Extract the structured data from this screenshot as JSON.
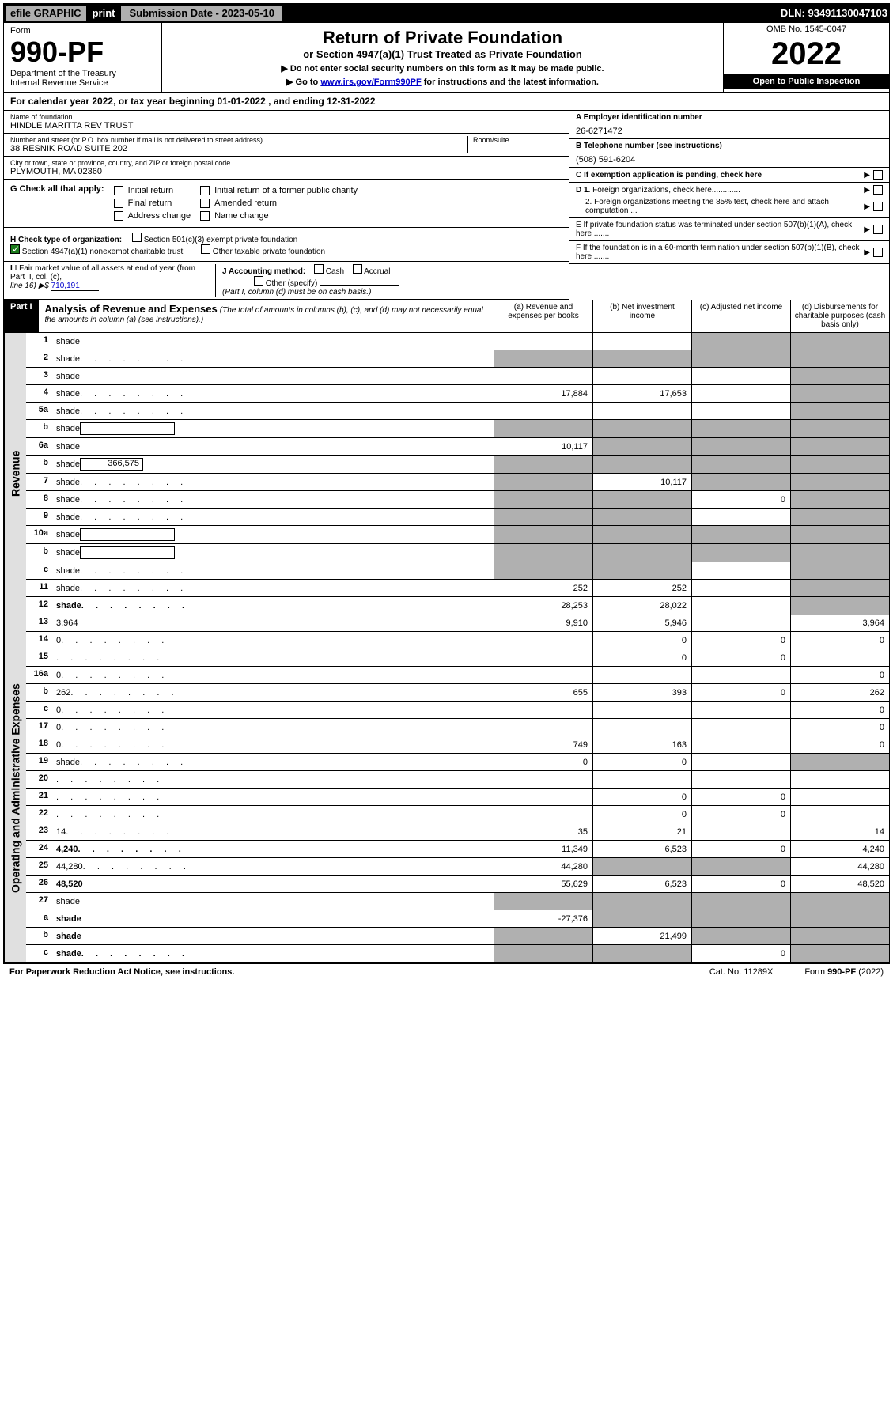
{
  "top": {
    "efile": "efile GRAPHIC",
    "print": "print",
    "subdate_label": "Submission Date - 2023-05-10",
    "dln": "DLN: 93491130047103"
  },
  "header": {
    "form_label": "Form",
    "form_num": "990-PF",
    "dept": "Department of the Treasury",
    "irs": "Internal Revenue Service",
    "title": "Return of Private Foundation",
    "subtitle": "or Section 4947(a)(1) Trust Treated as Private Foundation",
    "instr1": "▶ Do not enter social security numbers on this form as it may be made public.",
    "instr2_pre": "▶ Go to ",
    "instr2_link": "www.irs.gov/Form990PF",
    "instr2_post": " for instructions and the latest information.",
    "omb": "OMB No. 1545-0047",
    "year": "2022",
    "open": "Open to Public Inspection"
  },
  "calyear": "For calendar year 2022, or tax year beginning 01-01-2022                    , and ending 12-31-2022",
  "info": {
    "name_label": "Name of foundation",
    "name": "HINDLE MARITTA REV TRUST",
    "addr_label": "Number and street (or P.O. box number if mail is not delivered to street address)",
    "room_label": "Room/suite",
    "addr": "38 RESNIK ROAD SUITE 202",
    "city_label": "City or town, state or province, country, and ZIP or foreign postal code",
    "city": "PLYMOUTH, MA  02360",
    "ein_label": "A Employer identification number",
    "ein": "26-6271472",
    "tel_label": "B Telephone number (see instructions)",
    "tel": "(508) 591-6204",
    "c_label": "C If exemption application is pending, check here",
    "d1": "D 1. Foreign organizations, check here.............",
    "d2": "2. Foreign organizations meeting the 85% test, check here and attach computation ...",
    "e": "E  If private foundation status was terminated under section 507(b)(1)(A), check here .......",
    "f": "F  If the foundation is in a 60-month termination under section 507(b)(1)(B), check here ......."
  },
  "g": {
    "label": "G Check all that apply:",
    "initial": "Initial return",
    "initial_former": "Initial return of a former public charity",
    "final": "Final return",
    "amended": "Amended return",
    "addr_change": "Address change",
    "name_change": "Name change"
  },
  "h": {
    "label": "H Check type of organization:",
    "opt1": "Section 501(c)(3) exempt private foundation",
    "opt2": "Section 4947(a)(1) nonexempt charitable trust",
    "opt3": "Other taxable private foundation"
  },
  "i": {
    "label": "I Fair market value of all assets at end of year (from Part II, col. (c),",
    "line16": "line 16) ▶$",
    "value": "710,191"
  },
  "j": {
    "label": "J Accounting method:",
    "cash": "Cash",
    "accrual": "Accrual",
    "other": "Other (specify)",
    "note": "(Part I, column (d) must be on cash basis.)"
  },
  "part1": {
    "label": "Part I",
    "title": "Analysis of Revenue and Expenses",
    "note": "(The total of amounts in columns (b), (c), and (d) may not necessarily equal the amounts in column (a) (see instructions).)",
    "col_a": "(a)   Revenue and expenses per books",
    "col_b": "(b)   Net investment income",
    "col_c": "(c)   Adjusted net income",
    "col_d": "(d)   Disbursements for charitable purposes (cash basis only)"
  },
  "sides": {
    "revenue": "Revenue",
    "expenses": "Operating and Administrative Expenses"
  },
  "lines": [
    {
      "n": "1",
      "d": "shade",
      "a": "",
      "b": "",
      "c": "shade"
    },
    {
      "n": "2",
      "d": "shade",
      "a": "shade",
      "b": "shade",
      "c": "shade",
      "dots": true
    },
    {
      "n": "3",
      "d": "shade",
      "a": "",
      "b": "",
      "c": ""
    },
    {
      "n": "4",
      "d": "shade",
      "a": "17,884",
      "b": "17,653",
      "c": "",
      "dots": true
    },
    {
      "n": "5a",
      "d": "shade",
      "a": "",
      "b": "",
      "c": "",
      "dots": true
    },
    {
      "n": "b",
      "d": "shade",
      "a": "shade",
      "b": "shade",
      "c": "shade",
      "inline": true
    },
    {
      "n": "6a",
      "d": "shade",
      "a": "10,117",
      "b": "shade",
      "c": "shade"
    },
    {
      "n": "b",
      "d": "shade",
      "a": "shade",
      "b": "shade",
      "c": "shade",
      "inline": true,
      "inline_val": "366,575"
    },
    {
      "n": "7",
      "d": "shade",
      "a": "shade",
      "b": "10,117",
      "c": "shade",
      "dots": true
    },
    {
      "n": "8",
      "d": "shade",
      "a": "shade",
      "b": "shade",
      "c": "0",
      "dots": true
    },
    {
      "n": "9",
      "d": "shade",
      "a": "shade",
      "b": "shade",
      "c": "",
      "dots": true
    },
    {
      "n": "10a",
      "d": "shade",
      "a": "shade",
      "b": "shade",
      "c": "shade",
      "inline": true
    },
    {
      "n": "b",
      "d": "shade",
      "a": "shade",
      "b": "shade",
      "c": "shade",
      "inline": true,
      "dots": true
    },
    {
      "n": "c",
      "d": "shade",
      "a": "shade",
      "b": "shade",
      "c": "",
      "dots": true
    },
    {
      "n": "11",
      "d": "shade",
      "a": "252",
      "b": "252",
      "c": "",
      "dots": true
    },
    {
      "n": "12",
      "d": "shade",
      "a": "28,253",
      "b": "28,022",
      "c": "",
      "bold": true,
      "dots": true
    }
  ],
  "exp_lines": [
    {
      "n": "13",
      "d": "3,964",
      "a": "9,910",
      "b": "5,946",
      "c": ""
    },
    {
      "n": "14",
      "d": "0",
      "a": "",
      "b": "0",
      "c": "0",
      "dots": true
    },
    {
      "n": "15",
      "d": "",
      "a": "",
      "b": "0",
      "c": "0",
      "dots": true
    },
    {
      "n": "16a",
      "d": "0",
      "a": "",
      "b": "",
      "c": "",
      "dots": true
    },
    {
      "n": "b",
      "d": "262",
      "a": "655",
      "b": "393",
      "c": "0",
      "dots": true
    },
    {
      "n": "c",
      "d": "0",
      "a": "",
      "b": "",
      "c": "",
      "dots": true
    },
    {
      "n": "17",
      "d": "0",
      "a": "",
      "b": "",
      "c": "",
      "dots": true
    },
    {
      "n": "18",
      "d": "0",
      "a": "749",
      "b": "163",
      "c": "",
      "dots": true
    },
    {
      "n": "19",
      "d": "shade",
      "a": "0",
      "b": "0",
      "c": "",
      "dots": true
    },
    {
      "n": "20",
      "d": "",
      "a": "",
      "b": "",
      "c": "",
      "dots": true
    },
    {
      "n": "21",
      "d": "",
      "a": "",
      "b": "0",
      "c": "0",
      "dots": true
    },
    {
      "n": "22",
      "d": "",
      "a": "",
      "b": "0",
      "c": "0",
      "dots": true
    },
    {
      "n": "23",
      "d": "14",
      "a": "35",
      "b": "21",
      "c": "",
      "dots": true
    },
    {
      "n": "24",
      "d": "4,240",
      "a": "11,349",
      "b": "6,523",
      "c": "0",
      "bold": true,
      "dots": true
    },
    {
      "n": "25",
      "d": "44,280",
      "a": "44,280",
      "b": "shade",
      "c": "shade",
      "dots": true
    },
    {
      "n": "26",
      "d": "48,520",
      "a": "55,629",
      "b": "6,523",
      "c": "0",
      "bold": true
    },
    {
      "n": "27",
      "d": "shade",
      "a": "shade",
      "b": "shade",
      "c": "shade"
    },
    {
      "n": "a",
      "d": "shade",
      "a": "-27,376",
      "b": "shade",
      "c": "shade",
      "bold": true
    },
    {
      "n": "b",
      "d": "shade",
      "a": "shade",
      "b": "21,499",
      "c": "shade",
      "bold": true
    },
    {
      "n": "c",
      "d": "shade",
      "a": "shade",
      "b": "shade",
      "c": "0",
      "bold": true,
      "dots": true
    }
  ],
  "footer": {
    "left": "For Paperwork Reduction Act Notice, see instructions.",
    "mid": "Cat. No. 11289X",
    "right": "Form 990-PF (2022)"
  },
  "colors": {
    "black": "#000000",
    "shade": "#b0b0b0",
    "link": "#0000cc",
    "check_green": "#1a7a1a"
  }
}
